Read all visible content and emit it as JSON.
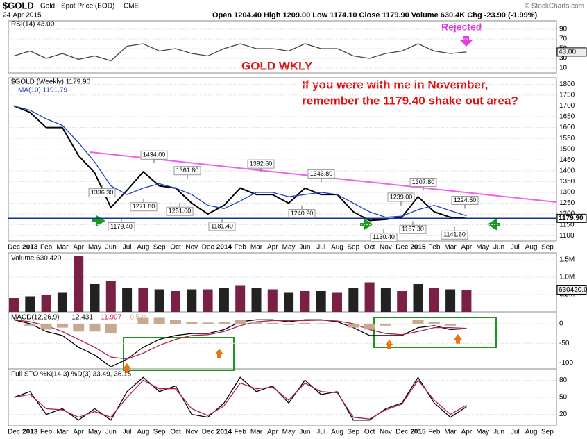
{
  "header": {
    "symbol": "$GOLD",
    "name": "Gold - Spot Price (EOD)",
    "exchange": "CME",
    "date": "24-Apr-2015",
    "quote": "Open 1204.40 High 1209.00 Low 1174.10 Close 1179.90 Volume 630.4K Chg -23.90 (-1.99%)",
    "credit": "© StockCharts.com"
  },
  "annotations": {
    "title": "GOLD WKLY",
    "line1": "If you were with me in November,",
    "line2": "remember the 1179.40 shake out area?",
    "rejected": "Rejected"
  },
  "chart_data": [
    {
      "type": "line",
      "title": "RSI(14) 43.00",
      "ylim": [
        0,
        100
      ],
      "yticks": [
        10,
        30,
        50,
        70,
        90
      ],
      "last_label": "43.00",
      "series": [
        {
          "name": "RSI(14)",
          "color": "#444444",
          "values": [
            35,
            45,
            30,
            40,
            28,
            35,
            25,
            55,
            60,
            45,
            50,
            40,
            35,
            50,
            60,
            50,
            50,
            45,
            60,
            50,
            50,
            35,
            30,
            40,
            45,
            60,
            45,
            40,
            43,
            null,
            null,
            null,
            null,
            null
          ]
        }
      ]
    },
    {
      "type": "line",
      "title": "$GOLD (Weekly) 1179.90",
      "ylim": [
        1075,
        1830
      ],
      "yticks": [
        1100,
        1150,
        1200,
        1250,
        1300,
        1350,
        1400,
        1450,
        1500,
        1550,
        1600,
        1650,
        1700,
        1750,
        1800
      ],
      "categories": [
        "Dec",
        "2013",
        "Feb",
        "Mar",
        "Apr",
        "May",
        "Jun",
        "Jul",
        "Aug",
        "Sep",
        "Oct",
        "Nov",
        "Dec",
        "2014",
        "Feb",
        "Mar",
        "Apr",
        "May",
        "Jun",
        "Jul",
        "Aug",
        "Sep",
        "Oct",
        "Nov",
        "Dec",
        "2015",
        "Feb",
        "Mar",
        "Apr",
        "May",
        "Jun",
        "Jul",
        "Aug",
        "Sep"
      ],
      "last_label": "1179.90",
      "support": 1179.4,
      "series": [
        {
          "name": "$GOLD (Weekly) 1179.90",
          "color": "#000000",
          "values": [
            1700,
            1670,
            1600,
            1600,
            1470,
            1390,
            1230,
            1310,
            1395,
            1330,
            1320,
            1250,
            1200,
            1240,
            1320,
            1290,
            1290,
            1250,
            1320,
            1290,
            1290,
            1210,
            1170,
            1175,
            1185,
            1280,
            1210,
            1185,
            1179.9,
            null,
            null,
            null,
            null,
            null
          ]
        },
        {
          "name": "MA(10) 1191.79",
          "color": "#1f3fbf",
          "values": [
            1700,
            1680,
            1640,
            1610,
            1530,
            1440,
            1330,
            1290,
            1320,
            1340,
            1320,
            1290,
            1240,
            1225,
            1260,
            1300,
            1300,
            1280,
            1290,
            1300,
            1290,
            1250,
            1210,
            1185,
            1190,
            1220,
            1240,
            1215,
            1191.79,
            null,
            null,
            null,
            null,
            null
          ]
        }
      ],
      "price_labels": [
        {
          "value": 1434,
          "label": "1434.00"
        },
        {
          "value": 1336.3,
          "label": "1336.30"
        },
        {
          "value": 1271.8,
          "label": "1271.80"
        },
        {
          "value": 1361.8,
          "label": "1361.80"
        },
        {
          "value": 1251,
          "label": "1251.00"
        },
        {
          "value": 1179.4,
          "label": "1179.40"
        },
        {
          "value": 1181.4,
          "label": "1181.40"
        },
        {
          "value": 1392.6,
          "label": "1392.60"
        },
        {
          "value": 1240.2,
          "label": "1240.20"
        },
        {
          "value": 1346.8,
          "label": "1346.80"
        },
        {
          "value": 1239,
          "label": "1239.00"
        },
        {
          "value": 1307.8,
          "label": "1307.80"
        },
        {
          "value": 1130.4,
          "label": "1130.40"
        },
        {
          "value": 1167.3,
          "label": "1167.30"
        },
        {
          "value": 1224.5,
          "label": "1224.50"
        },
        {
          "value": 1141.6,
          "label": "1141.60"
        }
      ]
    },
    {
      "type": "bar",
      "title": "Volume 630,420",
      "ylim": [
        0,
        1700000
      ],
      "last_label": "630420.0",
      "yticks": [
        {
          "value": 500000,
          "label": "0.5M"
        },
        {
          "value": 1000000,
          "label": "1.0M"
        },
        {
          "value": 1500000,
          "label": "1.5M"
        }
      ],
      "color": "#7a1f45",
      "values": [
        400000,
        450000,
        500000,
        550000,
        1600000,
        800000,
        900000,
        700000,
        700000,
        650000,
        600000,
        650000,
        650000,
        700000,
        750000,
        700000,
        650000,
        550000,
        600000,
        600000,
        550000,
        700000,
        850000,
        700000,
        600000,
        800000,
        700000,
        650000,
        630420,
        null,
        null,
        null,
        null,
        null
      ]
    },
    {
      "type": "line",
      "title": "MACD(12,26,9)",
      "ylim": [
        -115,
        30
      ],
      "yticks": [
        0,
        -50,
        -100
      ],
      "series": [
        {
          "name": "-12.431",
          "color": "#000000",
          "values": [
            10,
            0,
            -20,
            -30,
            -60,
            -80,
            -110,
            -90,
            -60,
            -40,
            -30,
            -25,
            -25,
            -15,
            5,
            10,
            10,
            5,
            10,
            10,
            5,
            -10,
            -30,
            -30,
            -30,
            -10,
            -5,
            -15,
            -12.431,
            null,
            null,
            null,
            null,
            null
          ]
        },
        {
          "name": "-11.907",
          "color": "#b0204a",
          "values": [
            10,
            5,
            -5,
            -20,
            -40,
            -60,
            -85,
            -90,
            -75,
            -55,
            -40,
            -30,
            -28,
            -20,
            -5,
            5,
            8,
            8,
            8,
            9,
            7,
            0,
            -15,
            -25,
            -28,
            -20,
            -10,
            -10,
            -11.907,
            null,
            null,
            null,
            null,
            null
          ]
        },
        {
          "name": "-0.524",
          "color": "#c8a890",
          "values": [
            0,
            -5,
            -15,
            -10,
            -20,
            -20,
            -25,
            0,
            15,
            15,
            10,
            5,
            3,
            5,
            10,
            5,
            2,
            -3,
            2,
            1,
            -2,
            -10,
            -15,
            -5,
            -2,
            10,
            5,
            -5,
            -0.524,
            null,
            null,
            null,
            null,
            null
          ]
        }
      ]
    },
    {
      "type": "line",
      "title": "Full STO %K(14,3) %D(3) 33.49, 36.15",
      "ylim": [
        0,
        100
      ],
      "yticks": [
        20,
        50,
        80
      ],
      "series": [
        {
          "name": "%K",
          "color": "#000000",
          "values": [
            50,
            60,
            20,
            30,
            10,
            30,
            10,
            60,
            85,
            60,
            70,
            20,
            15,
            40,
            85,
            60,
            70,
            40,
            80,
            55,
            60,
            10,
            10,
            30,
            40,
            85,
            40,
            15,
            33.49,
            null,
            null,
            null,
            null,
            null
          ]
        },
        {
          "name": "%D",
          "color": "#b0204a",
          "values": [
            50,
            55,
            30,
            28,
            15,
            25,
            15,
            50,
            80,
            65,
            65,
            30,
            18,
            35,
            75,
            65,
            68,
            45,
            75,
            60,
            58,
            15,
            12,
            28,
            38,
            80,
            45,
            20,
            36.15,
            null,
            null,
            null,
            null,
            null
          ]
        }
      ]
    }
  ]
}
